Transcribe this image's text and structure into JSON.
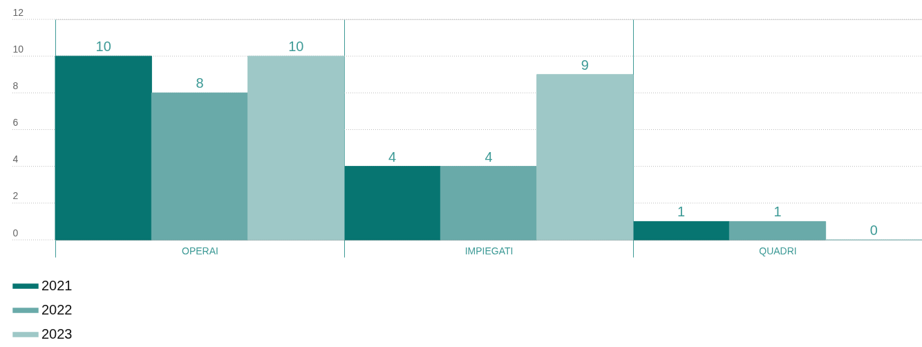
{
  "chart_data": {
    "type": "bar",
    "categories": [
      "OPERAI",
      "IMPIEGATI",
      "QUADRI"
    ],
    "series": [
      {
        "name": "2021",
        "color": "#077571",
        "values": [
          10,
          4,
          1
        ]
      },
      {
        "name": "2022",
        "color": "#69aaa9",
        "values": [
          8,
          4,
          1
        ]
      },
      {
        "name": "2023",
        "color": "#9ec8c7",
        "values": [
          10,
          9,
          0
        ]
      }
    ],
    "ylim": [
      0,
      12
    ],
    "yticks": [
      0,
      2,
      4,
      6,
      8,
      10,
      12
    ],
    "grid": "y",
    "data_labels": true,
    "legend": "bottom left"
  }
}
